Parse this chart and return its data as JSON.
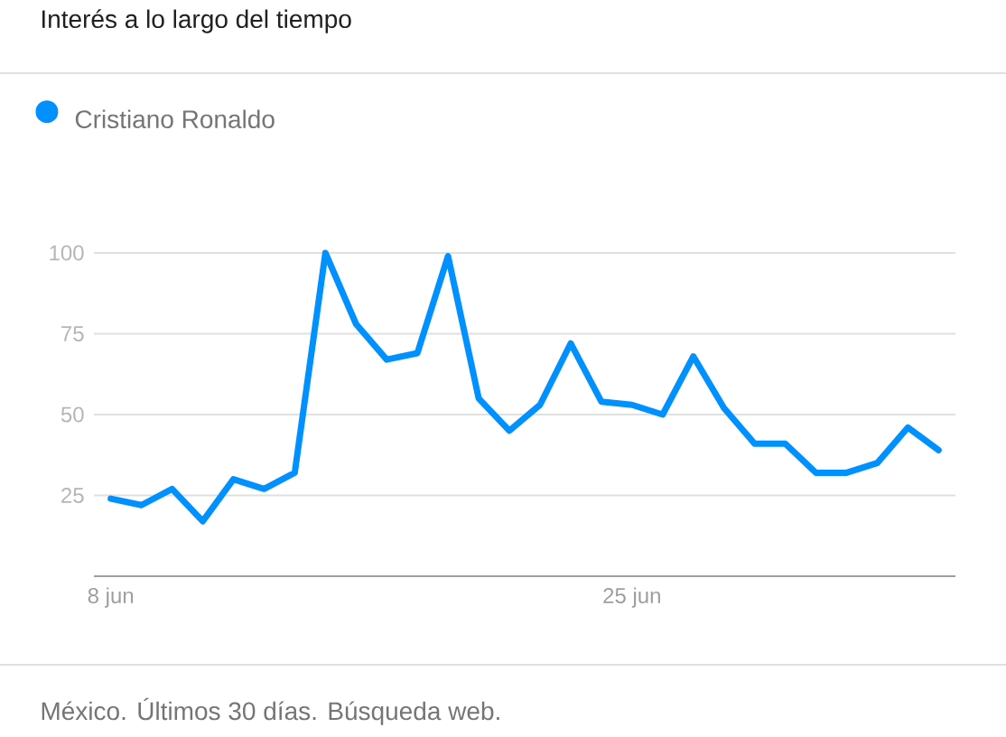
{
  "chart_data": {
    "type": "line",
    "title": "Interés a lo largo del tiempo",
    "categories": [
      "8 jun",
      null,
      null,
      null,
      null,
      null,
      null,
      null,
      null,
      null,
      null,
      null,
      null,
      null,
      null,
      null,
      null,
      "25 jun",
      null,
      null,
      null,
      null,
      null,
      null,
      null,
      null,
      null,
      null
    ],
    "series": [
      {
        "name": "Cristiano Ronaldo",
        "color": "#0091ff",
        "values": [
          24,
          22,
          27,
          17,
          30,
          27,
          32,
          100,
          78,
          67,
          69,
          99,
          55,
          45,
          53,
          72,
          54,
          53,
          50,
          68,
          52,
          41,
          41,
          32,
          32,
          35,
          46,
          39
        ]
      }
    ],
    "ylim": [
      0,
      100
    ],
    "yticks": [
      25,
      50,
      75,
      100
    ],
    "grid": "y",
    "legend": "top left",
    "marker": "none",
    "line_style": "solid",
    "annotations": [
      "México. Últimos 30 días. Búsqueda web."
    ]
  }
}
